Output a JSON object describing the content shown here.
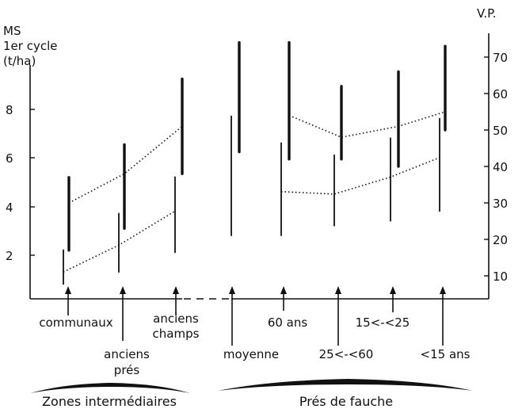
{
  "chart_data": {
    "type": "range-bar",
    "left_axis": {
      "title_lines": [
        "MS",
        "1er cycle",
        "(t/ha)"
      ],
      "ticks": [
        2,
        4,
        6,
        8
      ],
      "range": [
        0,
        10
      ]
    },
    "right_axis": {
      "title": "V.P.",
      "ticks": [
        10,
        20,
        30,
        40,
        50,
        60,
        70
      ],
      "range": [
        5,
        75
      ]
    },
    "positions": [
      {
        "key": "communaux",
        "label_lines": [
          "communaux"
        ]
      },
      {
        "key": "anciens_pres",
        "label_lines": [
          "anciens",
          "prés"
        ]
      },
      {
        "key": "anciens_champs",
        "label_lines": [
          "anciens",
          "champs"
        ]
      },
      {
        "key": "moyenne",
        "label_lines": [
          "moyenne"
        ]
      },
      {
        "key": "60ans",
        "label_lines": [
          "60 ans"
        ]
      },
      {
        "key": "25_60",
        "label_lines": [
          "25<-<60"
        ]
      },
      {
        "key": "15_25",
        "label_lines": [
          "15<-<25"
        ]
      },
      {
        "key": "lt15",
        "label_lines": [
          "<15 ans"
        ]
      }
    ],
    "series": [
      {
        "axis": "left",
        "ranges": [
          [
            0.8,
            2.2
          ],
          [
            1.3,
            3.7
          ],
          [
            2.1,
            5.2
          ],
          [
            2.8,
            7.7
          ],
          [
            2.8,
            6.6
          ],
          [
            3.2,
            6.1
          ],
          [
            3.4,
            6.8
          ],
          [
            3.8,
            7.6
          ]
        ],
        "trend": [
          [
            0,
            1.3
          ],
          [
            1,
            2.4
          ],
          [
            2,
            3.8
          ],
          [
            4,
            4.6
          ],
          [
            5,
            4.5
          ],
          [
            6,
            5.2
          ],
          [
            7,
            6.0
          ]
        ]
      },
      {
        "axis": "right",
        "ranges": [
          [
            17,
            37
          ],
          [
            23,
            46
          ],
          [
            38,
            64
          ],
          [
            44,
            74
          ],
          [
            42,
            74
          ],
          [
            42,
            62
          ],
          [
            40,
            66
          ],
          [
            50,
            73
          ]
        ],
        "trend": [
          [
            0,
            30
          ],
          [
            1,
            38
          ],
          [
            2,
            51
          ],
          [
            4,
            54
          ],
          [
            5,
            48
          ],
          [
            6,
            51
          ],
          [
            7,
            55
          ]
        ]
      }
    ],
    "groups": [
      {
        "label": "Zones intermédiaires"
      },
      {
        "label": "Prés de fauche"
      }
    ]
  }
}
